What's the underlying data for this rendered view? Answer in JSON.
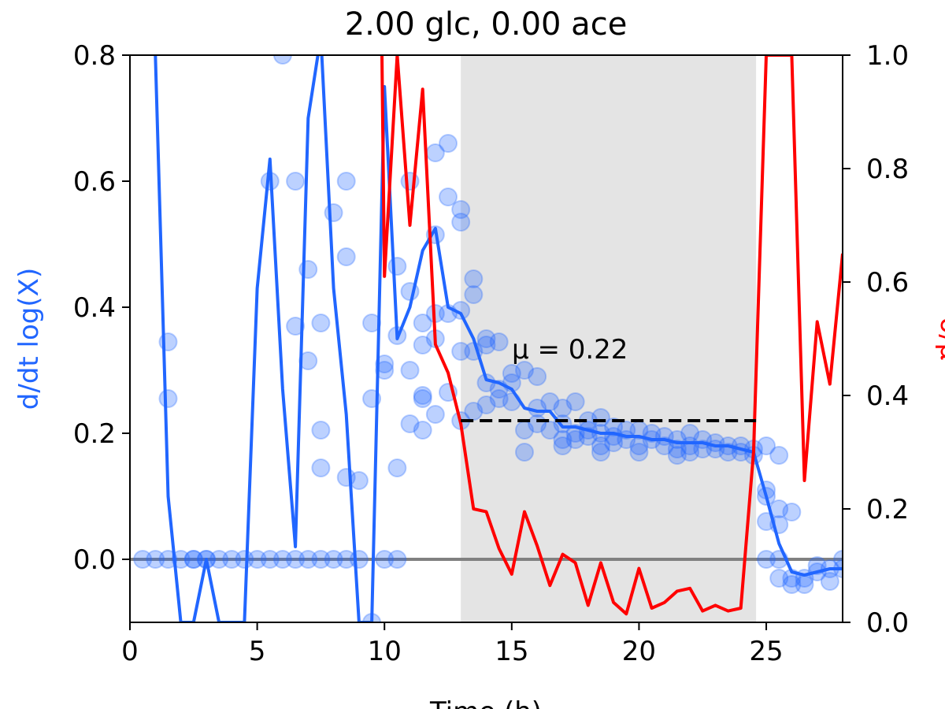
{
  "chart_data": {
    "type": "line",
    "title": "2.00 glc, 0.00 ace",
    "xlabel": "Time (h)",
    "ylabel_left": "d/dt log(X)",
    "ylabel_right": "σ/μ",
    "xlim": [
      0,
      28
    ],
    "ylim_left": [
      -0.1,
      0.8
    ],
    "ylim_right": [
      0.0,
      1.0
    ],
    "x_ticks": [
      "0",
      "5",
      "10",
      "15",
      "20",
      "25"
    ],
    "y_ticks_left": [
      "0.0",
      "0.2",
      "0.4",
      "0.6",
      "0.8"
    ],
    "y_ticks_right": [
      "0.0",
      "0.2",
      "0.4",
      "0.6",
      "0.8",
      "1.0"
    ],
    "grid": false,
    "shaded_region": {
      "x0": 13.0,
      "x1": 24.6,
      "color": "#e4e4e4"
    },
    "zero_line": {
      "y": 0.0,
      "color": "#808080"
    },
    "fit_line": {
      "x0": 13.0,
      "x1": 24.6,
      "y": 0.22,
      "label": "μ = 0.22",
      "label_x": 15.0,
      "label_y": 0.33
    },
    "colors": {
      "growth": "#2166ff",
      "cv": "#ff0000",
      "fit": "#000000"
    },
    "series": [
      {
        "axis": "left",
        "style": "scatter",
        "color": "#2166ff",
        "points": [
          [
            0.5,
            0.0
          ],
          [
            1.0,
            0.0
          ],
          [
            1.5,
            0.345
          ],
          [
            1.5,
            0.255
          ],
          [
            1.5,
            0.0
          ],
          [
            2.0,
            0.0
          ],
          [
            2.5,
            0.0
          ],
          [
            2.5,
            0.0
          ],
          [
            3.0,
            0.0
          ],
          [
            3.0,
            0.0
          ],
          [
            3.5,
            0.0
          ],
          [
            4.0,
            0.0
          ],
          [
            4.5,
            0.0
          ],
          [
            5.0,
            0.0
          ],
          [
            5.5,
            0.6
          ],
          [
            5.5,
            0.0
          ],
          [
            6.0,
            0.8
          ],
          [
            6.0,
            0.0
          ],
          [
            6.5,
            0.6
          ],
          [
            6.5,
            0.37
          ],
          [
            6.5,
            0.0
          ],
          [
            7.0,
            0.46
          ],
          [
            7.0,
            0.315
          ],
          [
            7.0,
            0.0
          ],
          [
            7.5,
            0.375
          ],
          [
            7.5,
            0.205
          ],
          [
            7.5,
            0.145
          ],
          [
            7.5,
            0.0
          ],
          [
            8.0,
            0.55
          ],
          [
            8.0,
            0.0
          ],
          [
            8.5,
            0.6
          ],
          [
            8.5,
            0.48
          ],
          [
            8.5,
            0.13
          ],
          [
            8.5,
            0.0
          ],
          [
            9.0,
            0.125
          ],
          [
            9.0,
            0.0
          ],
          [
            9.5,
            0.375
          ],
          [
            9.5,
            0.255
          ],
          [
            9.5,
            -0.1
          ],
          [
            10.0,
            0.31
          ],
          [
            10.0,
            0.3
          ],
          [
            10.0,
            0.0
          ],
          [
            10.5,
            0.465
          ],
          [
            10.5,
            0.355
          ],
          [
            10.5,
            0.145
          ],
          [
            10.5,
            0.0
          ],
          [
            11.0,
            0.6
          ],
          [
            11.0,
            0.425
          ],
          [
            11.0,
            0.3
          ],
          [
            11.0,
            0.215
          ],
          [
            11.5,
            0.375
          ],
          [
            11.5,
            0.34
          ],
          [
            11.5,
            0.26
          ],
          [
            11.5,
            0.255
          ],
          [
            11.5,
            0.205
          ],
          [
            12.0,
            0.645
          ],
          [
            12.0,
            0.515
          ],
          [
            12.0,
            0.39
          ],
          [
            12.0,
            0.35
          ],
          [
            12.0,
            0.23
          ],
          [
            12.5,
            0.66
          ],
          [
            12.5,
            0.575
          ],
          [
            12.5,
            0.39
          ],
          [
            12.5,
            0.265
          ],
          [
            13.0,
            0.555
          ],
          [
            13.0,
            0.535
          ],
          [
            13.0,
            0.395
          ],
          [
            13.0,
            0.33
          ],
          [
            13.0,
            0.22
          ],
          [
            13.5,
            0.445
          ],
          [
            13.5,
            0.42
          ],
          [
            13.5,
            0.33
          ],
          [
            13.5,
            0.235
          ],
          [
            14.0,
            0.35
          ],
          [
            14.0,
            0.34
          ],
          [
            14.0,
            0.28
          ],
          [
            14.0,
            0.245
          ],
          [
            14.5,
            0.345
          ],
          [
            14.5,
            0.27
          ],
          [
            14.5,
            0.255
          ],
          [
            15.0,
            0.295
          ],
          [
            15.0,
            0.28
          ],
          [
            15.0,
            0.25
          ],
          [
            15.5,
            0.3
          ],
          [
            15.5,
            0.205
          ],
          [
            15.5,
            0.17
          ],
          [
            16.0,
            0.29
          ],
          [
            16.0,
            0.24
          ],
          [
            16.0,
            0.215
          ],
          [
            16.5,
            0.25
          ],
          [
            16.5,
            0.205
          ],
          [
            17.0,
            0.24
          ],
          [
            17.0,
            0.215
          ],
          [
            17.0,
            0.19
          ],
          [
            17.0,
            0.18
          ],
          [
            17.5,
            0.25
          ],
          [
            17.5,
            0.2
          ],
          [
            17.5,
            0.19
          ],
          [
            18.0,
            0.22
          ],
          [
            18.0,
            0.205
          ],
          [
            18.0,
            0.195
          ],
          [
            18.5,
            0.225
          ],
          [
            18.5,
            0.2
          ],
          [
            18.5,
            0.18
          ],
          [
            18.5,
            0.17
          ],
          [
            19.0,
            0.21
          ],
          [
            19.0,
            0.195
          ],
          [
            19.0,
            0.185
          ],
          [
            19.5,
            0.205
          ],
          [
            19.5,
            0.19
          ],
          [
            20.0,
            0.205
          ],
          [
            20.0,
            0.18
          ],
          [
            20.0,
            0.17
          ],
          [
            20.5,
            0.2
          ],
          [
            20.5,
            0.19
          ],
          [
            21.0,
            0.195
          ],
          [
            21.0,
            0.18
          ],
          [
            21.5,
            0.19
          ],
          [
            21.5,
            0.175
          ],
          [
            21.5,
            0.165
          ],
          [
            22.0,
            0.2
          ],
          [
            22.0,
            0.18
          ],
          [
            22.0,
            0.17
          ],
          [
            22.5,
            0.19
          ],
          [
            22.5,
            0.175
          ],
          [
            23.0,
            0.185
          ],
          [
            23.0,
            0.175
          ],
          [
            23.5,
            0.18
          ],
          [
            23.5,
            0.17
          ],
          [
            24.0,
            0.18
          ],
          [
            24.0,
            0.17
          ],
          [
            24.5,
            0.175
          ],
          [
            24.5,
            0.165
          ],
          [
            25.0,
            0.18
          ],
          [
            25.0,
            0.11
          ],
          [
            25.0,
            0.1
          ],
          [
            25.0,
            0.06
          ],
          [
            25.0,
            0.0
          ],
          [
            25.5,
            0.165
          ],
          [
            25.5,
            0.08
          ],
          [
            25.5,
            0.055
          ],
          [
            25.5,
            0.0
          ],
          [
            25.5,
            -0.03
          ],
          [
            26.0,
            0.075
          ],
          [
            26.0,
            -0.03
          ],
          [
            26.0,
            -0.04
          ],
          [
            26.5,
            -0.03
          ],
          [
            26.5,
            -0.04
          ],
          [
            27.0,
            -0.01
          ],
          [
            27.0,
            -0.02
          ],
          [
            27.5,
            -0.015
          ],
          [
            27.5,
            -0.035
          ],
          [
            28.0,
            0.0
          ],
          [
            28.0,
            -0.015
          ]
        ]
      },
      {
        "axis": "left",
        "style": "line",
        "color": "#2166ff",
        "x": [
          1.0,
          1.5,
          2.0,
          2.5,
          3.0,
          3.5,
          4.0,
          4.5,
          5.0,
          5.5,
          6.0,
          6.5,
          7.0,
          7.5,
          8.0,
          8.5,
          9.0,
          9.5,
          10.0,
          10.5,
          11.0,
          11.5,
          12.0,
          12.5,
          13.0,
          13.5,
          14.0,
          14.5,
          15.0,
          15.5,
          16.0,
          16.5,
          17.0,
          17.5,
          18.0,
          18.5,
          19.0,
          19.5,
          20.0,
          20.5,
          21.0,
          21.5,
          22.0,
          22.5,
          23.0,
          23.5,
          24.0,
          24.5,
          25.0,
          25.5,
          26.0,
          26.5,
          27.0,
          27.5,
          28.0
        ],
        "y": [
          0.8,
          0.1,
          -0.1,
          -0.1,
          0.0,
          -0.1,
          -0.1,
          -0.1,
          0.43,
          0.635,
          0.27,
          0.02,
          0.7,
          0.83,
          0.43,
          0.23,
          -0.1,
          -0.1,
          0.75,
          0.35,
          0.4,
          0.49,
          0.525,
          0.4,
          0.39,
          0.35,
          0.285,
          0.28,
          0.27,
          0.24,
          0.235,
          0.235,
          0.21,
          0.21,
          0.205,
          0.2,
          0.2,
          0.195,
          0.195,
          0.19,
          0.19,
          0.185,
          0.185,
          0.185,
          0.18,
          0.18,
          0.175,
          0.17,
          0.1,
          0.025,
          -0.02,
          -0.025,
          -0.02,
          -0.015,
          -0.015
        ]
      },
      {
        "axis": "right",
        "style": "line",
        "color": "#ff0000",
        "x": [
          9.9,
          10.0,
          10.5,
          11.0,
          11.5,
          12.0,
          12.5,
          13.0,
          13.5,
          14.0,
          14.5,
          15.0,
          15.5,
          16.0,
          16.5,
          17.0,
          17.5,
          18.0,
          18.5,
          19.0,
          19.5,
          20.0,
          20.5,
          21.0,
          21.5,
          22.0,
          22.5,
          23.0,
          23.5,
          24.0,
          24.5,
          25.0,
          25.5,
          26.0,
          26.5,
          27.0,
          27.5,
          28.0
        ],
        "y": [
          1.0,
          0.61,
          1.0,
          0.7,
          0.94,
          0.49,
          0.44,
          0.35,
          0.2,
          0.195,
          0.13,
          0.085,
          0.195,
          0.135,
          0.065,
          0.12,
          0.105,
          0.03,
          0.105,
          0.035,
          0.015,
          0.095,
          0.025,
          0.035,
          0.055,
          0.06,
          0.02,
          0.03,
          0.02,
          0.025,
          0.3,
          1.0,
          1.0,
          1.0,
          0.25,
          0.53,
          0.42,
          0.65
        ]
      }
    ]
  }
}
